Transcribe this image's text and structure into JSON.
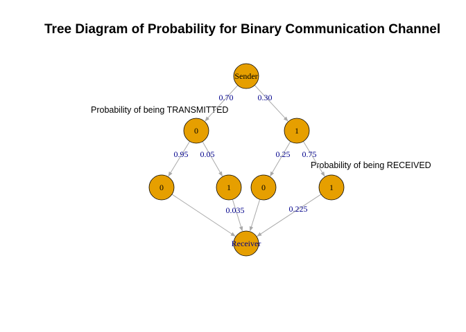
{
  "title": "Tree Diagram of Probability for Binary Communication Channel",
  "annotations": {
    "transmitted": "Probability of being TRANSMITTED",
    "received": "Probability of being RECEIVED"
  },
  "colors": {
    "node_fill": "#E69F00",
    "node_stroke": "#000000",
    "node_text": "#000000",
    "terminal_text": "#00008B",
    "edge": "#A9A9A9",
    "edge_label": "#00008B"
  },
  "nodes": [
    {
      "id": "sender",
      "label": "Sender",
      "terminal": true
    },
    {
      "id": "t0",
      "label": "0"
    },
    {
      "id": "t1",
      "label": "1"
    },
    {
      "id": "r00",
      "label": "0"
    },
    {
      "id": "r01",
      "label": "1"
    },
    {
      "id": "r10",
      "label": "0"
    },
    {
      "id": "r11",
      "label": "1"
    },
    {
      "id": "receiver",
      "label": "Receiver",
      "terminal": true
    }
  ],
  "edges": [
    {
      "from": "sender",
      "to": "t0",
      "label": "0.70"
    },
    {
      "from": "sender",
      "to": "t1",
      "label": "0.30"
    },
    {
      "from": "t0",
      "to": "r00",
      "label": "0.95"
    },
    {
      "from": "t0",
      "to": "r01",
      "label": "0.05"
    },
    {
      "from": "t1",
      "to": "r10",
      "label": "0.25"
    },
    {
      "from": "t1",
      "to": "r11",
      "label": "0.75"
    },
    {
      "from": "r00",
      "to": "receiver",
      "label": ""
    },
    {
      "from": "r01",
      "to": "receiver",
      "label": "0.035"
    },
    {
      "from": "r10",
      "to": "receiver",
      "label": ""
    },
    {
      "from": "r11",
      "to": "receiver",
      "label": "0.225"
    }
  ]
}
